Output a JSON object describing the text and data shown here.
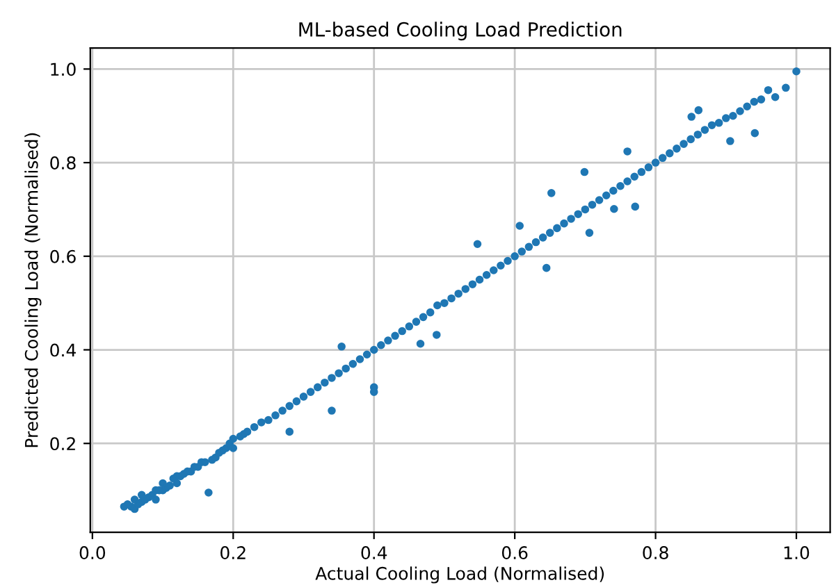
{
  "chart_data": {
    "type": "scatter",
    "title": "ML-based Cooling Load Prediction",
    "xlabel": "Actual Cooling Load (Normalised)",
    "ylabel": "Predicted Cooling Load (Normalised)",
    "xlim": [
      -0.003,
      1.048
    ],
    "ylim": [
      0.01,
      1.045
    ],
    "xticks": [
      {
        "value": 0,
        "label": "0.0"
      },
      0.2,
      0.4,
      0.6,
      0.8,
      {
        "value": 1,
        "label": "1.0"
      }
    ],
    "yticks": [
      0.2,
      0.4,
      0.6,
      0.8,
      {
        "value": 1,
        "label": "1.0"
      }
    ],
    "grid": true,
    "marker": "circle",
    "series": [
      {
        "color": "#1f77b4",
        "x": [
          0.045,
          0.05,
          0.055,
          0.06,
          0.06,
          0.065,
          0.07,
          0.07,
          0.075,
          0.08,
          0.085,
          0.09,
          0.09,
          0.095,
          0.1,
          0.1,
          0.105,
          0.11,
          0.115,
          0.12,
          0.12,
          0.125,
          0.13,
          0.135,
          0.14,
          0.145,
          0.15,
          0.155,
          0.16,
          0.165,
          0.17,
          0.175,
          0.18,
          0.185,
          0.19,
          0.195,
          0.2,
          0.2,
          0.21,
          0.215,
          0.22,
          0.23,
          0.24,
          0.25,
          0.26,
          0.27,
          0.28,
          0.28,
          0.29,
          0.3,
          0.31,
          0.32,
          0.33,
          0.34,
          0.34,
          0.35,
          0.354,
          0.36,
          0.37,
          0.38,
          0.39,
          0.4,
          0.4,
          0.4,
          0.41,
          0.42,
          0.43,
          0.44,
          0.45,
          0.46,
          0.466,
          0.47,
          0.48,
          0.489,
          0.49,
          0.5,
          0.51,
          0.52,
          0.53,
          0.54,
          0.547,
          0.55,
          0.56,
          0.57,
          0.58,
          0.59,
          0.6,
          0.607,
          0.61,
          0.62,
          0.63,
          0.64,
          0.645,
          0.65,
          0.652,
          0.66,
          0.67,
          0.68,
          0.69,
          0.699,
          0.7,
          0.706,
          0.71,
          0.72,
          0.73,
          0.74,
          0.741,
          0.75,
          0.76,
          0.76,
          0.77,
          0.771,
          0.78,
          0.79,
          0.8,
          0.81,
          0.82,
          0.83,
          0.84,
          0.85,
          0.851,
          0.86,
          0.861,
          0.87,
          0.88,
          0.89,
          0.9,
          0.906,
          0.91,
          0.92,
          0.93,
          0.94,
          0.941,
          0.95,
          0.96,
          0.97,
          0.985,
          1.0
        ],
        "values": [
          0.065,
          0.07,
          0.065,
          0.06,
          0.08,
          0.07,
          0.075,
          0.09,
          0.08,
          0.085,
          0.09,
          0.1,
          0.08,
          0.1,
          0.1,
          0.115,
          0.105,
          0.11,
          0.125,
          0.115,
          0.13,
          0.13,
          0.135,
          0.14,
          0.14,
          0.15,
          0.15,
          0.16,
          0.16,
          0.095,
          0.165,
          0.17,
          0.18,
          0.185,
          0.19,
          0.2,
          0.19,
          0.21,
          0.215,
          0.22,
          0.225,
          0.235,
          0.245,
          0.25,
          0.26,
          0.27,
          0.28,
          0.225,
          0.29,
          0.3,
          0.31,
          0.32,
          0.33,
          0.34,
          0.27,
          0.35,
          0.407,
          0.36,
          0.37,
          0.38,
          0.39,
          0.4,
          0.32,
          0.31,
          0.41,
          0.42,
          0.43,
          0.44,
          0.45,
          0.46,
          0.413,
          0.47,
          0.48,
          0.432,
          0.495,
          0.5,
          0.51,
          0.52,
          0.53,
          0.54,
          0.626,
          0.55,
          0.56,
          0.57,
          0.58,
          0.59,
          0.6,
          0.665,
          0.61,
          0.62,
          0.63,
          0.64,
          0.575,
          0.65,
          0.735,
          0.66,
          0.67,
          0.68,
          0.69,
          0.78,
          0.7,
          0.65,
          0.71,
          0.72,
          0.73,
          0.74,
          0.701,
          0.75,
          0.76,
          0.824,
          0.77,
          0.706,
          0.78,
          0.79,
          0.8,
          0.81,
          0.82,
          0.83,
          0.84,
          0.85,
          0.898,
          0.86,
          0.912,
          0.87,
          0.88,
          0.885,
          0.895,
          0.846,
          0.9,
          0.91,
          0.92,
          0.93,
          0.863,
          0.935,
          0.955,
          0.94,
          0.96,
          0.995
        ]
      }
    ]
  }
}
